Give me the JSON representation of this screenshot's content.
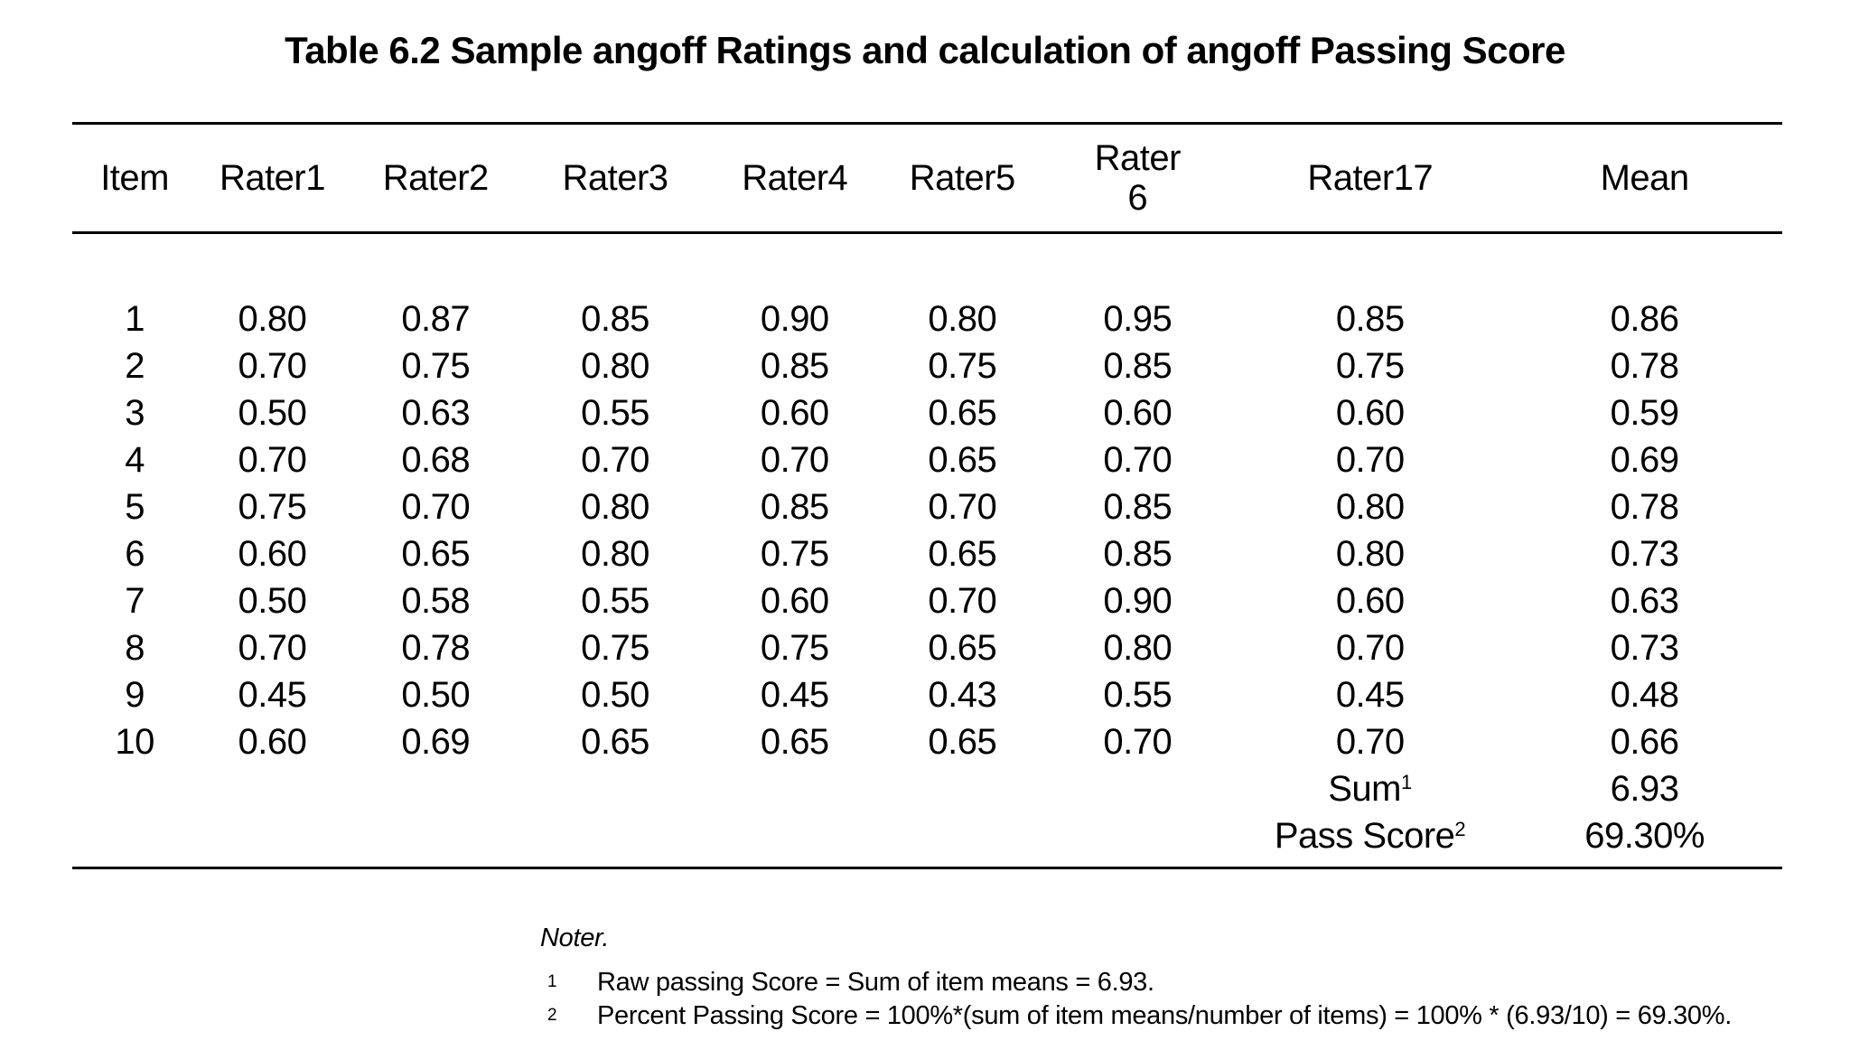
{
  "page": {
    "background": "#ffffff",
    "text_color": "#000000",
    "rule_color": "#000000"
  },
  "title": "Table 6.2 Sample angoff Ratings and calculation of angoff Passing Score",
  "table": {
    "columns": [
      "Item",
      "Rater1",
      "Rater2",
      "Rater3",
      "Rater4",
      "Rater5",
      "Rater 6",
      "Rater17",
      "Mean"
    ],
    "rows": [
      [
        "1",
        "0.80",
        "0.87",
        "0.85",
        "0.90",
        "0.80",
        "0.95",
        "0.85",
        "0.86"
      ],
      [
        "2",
        "0.70",
        "0.75",
        "0.80",
        "0.85",
        "0.75",
        "0.85",
        "0.75",
        "0.78"
      ],
      [
        "3",
        "0.50",
        "0.63",
        "0.55",
        "0.60",
        "0.65",
        "0.60",
        "0.60",
        "0.59"
      ],
      [
        "4",
        "0.70",
        "0.68",
        "0.70",
        "0.70",
        "0.65",
        "0.70",
        "0.70",
        "0.69"
      ],
      [
        "5",
        "0.75",
        "0.70",
        "0.80",
        "0.85",
        "0.70",
        "0.85",
        "0.80",
        "0.78"
      ],
      [
        "6",
        "0.60",
        "0.65",
        "0.80",
        "0.75",
        "0.65",
        "0.85",
        "0.80",
        "0.73"
      ],
      [
        "7",
        "0.50",
        "0.58",
        "0.55",
        "0.60",
        "0.70",
        "0.90",
        "0.60",
        "0.63"
      ],
      [
        "8",
        "0.70",
        "0.78",
        "0.75",
        "0.75",
        "0.65",
        "0.80",
        "0.70",
        "0.73"
      ],
      [
        "9",
        "0.45",
        "0.50",
        "0.50",
        "0.45",
        "0.43",
        "0.55",
        "0.45",
        "0.48"
      ],
      [
        "10",
        "0.60",
        "0.69",
        "0.65",
        "0.65",
        "0.65",
        "0.70",
        "0.70",
        "0.66"
      ]
    ],
    "summary": [
      {
        "label": "Sum",
        "sup": "1",
        "value": "6.93"
      },
      {
        "label": "Pass Score",
        "sup": "2",
        "value": "69.30%"
      }
    ]
  },
  "notes": {
    "heading": "Noter.",
    "items": [
      {
        "sup": "1",
        "text": "Raw passing Score = Sum of item means = 6.93."
      },
      {
        "sup": "2",
        "text": "Percent Passing Score = 100%*(sum of item means/number of items) = 100% * (6.93/10) = 69.30%."
      }
    ]
  }
}
